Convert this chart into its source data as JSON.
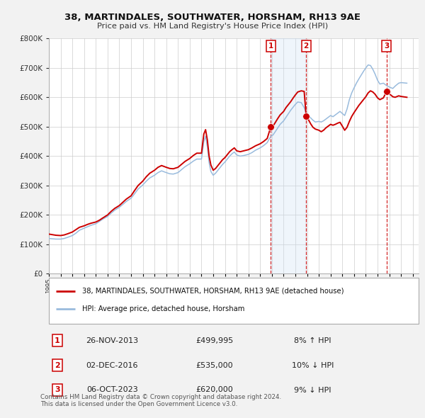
{
  "title": "38, MARTINDALES, SOUTHWATER, HORSHAM, RH13 9AE",
  "subtitle": "Price paid vs. HM Land Registry's House Price Index (HPI)",
  "ylim": [
    0,
    800000
  ],
  "yticks": [
    0,
    100000,
    200000,
    300000,
    400000,
    500000,
    600000,
    700000,
    800000
  ],
  "xlim_start": 1995.0,
  "xlim_end": 2026.5,
  "bg_color": "#f2f2f2",
  "plot_bg_color": "#ffffff",
  "grid_color": "#cccccc",
  "red_line_color": "#cc0000",
  "blue_line_color": "#99bbdd",
  "shade_color": "#cce0f5",
  "marker_color": "#cc0000",
  "sale_marker_size": 7,
  "purchases": [
    {
      "date_num": 2013.91,
      "price": 499995,
      "label": "1"
    },
    {
      "date_num": 2016.92,
      "price": 535000,
      "label": "2"
    },
    {
      "date_num": 2023.77,
      "price": 620000,
      "label": "3"
    }
  ],
  "vline_dates": [
    2013.91,
    2016.92,
    2023.77
  ],
  "shade_regions": [
    [
      2013.91,
      2016.92
    ]
  ],
  "legend_entries": [
    {
      "label": "38, MARTINDALES, SOUTHWATER, HORSHAM, RH13 9AE (detached house)",
      "color": "#cc0000",
      "lw": 2
    },
    {
      "label": "HPI: Average price, detached house, Horsham",
      "color": "#99bbdd",
      "lw": 2
    }
  ],
  "table_rows": [
    {
      "num": "1",
      "date": "26-NOV-2013",
      "price": "£499,995",
      "hpi": "8% ↑ HPI"
    },
    {
      "num": "2",
      "date": "02-DEC-2016",
      "price": "£535,000",
      "hpi": "10% ↓ HPI"
    },
    {
      "num": "3",
      "date": "06-OCT-2023",
      "price": "£620,000",
      "hpi": "9% ↓ HPI"
    }
  ],
  "footer": "Contains HM Land Registry data © Crown copyright and database right 2024.\nThis data is licensed under the Open Government Licence v3.0.",
  "red_hpi_data": [
    [
      1995.0,
      135000
    ],
    [
      1995.3,
      133000
    ],
    [
      1995.6,
      131000
    ],
    [
      1996.0,
      130000
    ],
    [
      1996.3,
      132000
    ],
    [
      1996.6,
      136000
    ],
    [
      1997.0,
      142000
    ],
    [
      1997.3,
      150000
    ],
    [
      1997.6,
      158000
    ],
    [
      1998.0,
      163000
    ],
    [
      1998.3,
      168000
    ],
    [
      1998.6,
      172000
    ],
    [
      1999.0,
      176000
    ],
    [
      1999.3,
      182000
    ],
    [
      1999.6,
      190000
    ],
    [
      2000.0,
      200000
    ],
    [
      2000.3,
      212000
    ],
    [
      2000.6,
      222000
    ],
    [
      2001.0,
      232000
    ],
    [
      2001.3,
      243000
    ],
    [
      2001.6,
      254000
    ],
    [
      2002.0,
      265000
    ],
    [
      2002.3,
      283000
    ],
    [
      2002.6,
      300000
    ],
    [
      2003.0,
      315000
    ],
    [
      2003.3,
      330000
    ],
    [
      2003.6,
      342000
    ],
    [
      2004.0,
      352000
    ],
    [
      2004.3,
      362000
    ],
    [
      2004.6,
      368000
    ],
    [
      2005.0,
      362000
    ],
    [
      2005.3,
      358000
    ],
    [
      2005.6,
      357000
    ],
    [
      2006.0,
      362000
    ],
    [
      2006.3,
      372000
    ],
    [
      2006.6,
      382000
    ],
    [
      2007.0,
      392000
    ],
    [
      2007.3,
      402000
    ],
    [
      2007.6,
      410000
    ],
    [
      2008.0,
      410000
    ],
    [
      2008.2,
      475000
    ],
    [
      2008.35,
      490000
    ],
    [
      2008.5,
      455000
    ],
    [
      2008.65,
      400000
    ],
    [
      2008.8,
      370000
    ],
    [
      2009.0,
      352000
    ],
    [
      2009.2,
      358000
    ],
    [
      2009.4,
      368000
    ],
    [
      2009.6,
      378000
    ],
    [
      2009.8,
      388000
    ],
    [
      2010.0,
      395000
    ],
    [
      2010.2,
      405000
    ],
    [
      2010.4,
      415000
    ],
    [
      2010.6,
      422000
    ],
    [
      2010.8,
      428000
    ],
    [
      2011.0,
      418000
    ],
    [
      2011.3,
      415000
    ],
    [
      2011.6,
      418000
    ],
    [
      2012.0,
      422000
    ],
    [
      2012.3,
      428000
    ],
    [
      2012.6,
      435000
    ],
    [
      2013.0,
      442000
    ],
    [
      2013.3,
      450000
    ],
    [
      2013.6,
      460000
    ],
    [
      2013.91,
      499995
    ],
    [
      2014.1,
      502000
    ],
    [
      2014.3,
      515000
    ],
    [
      2014.5,
      528000
    ],
    [
      2014.7,
      540000
    ],
    [
      2015.0,
      552000
    ],
    [
      2015.2,
      565000
    ],
    [
      2015.4,
      575000
    ],
    [
      2015.6,
      585000
    ],
    [
      2015.8,
      597000
    ],
    [
      2016.0,
      608000
    ],
    [
      2016.2,
      618000
    ],
    [
      2016.5,
      622000
    ],
    [
      2016.75,
      620000
    ],
    [
      2016.92,
      535000
    ],
    [
      2017.1,
      525000
    ],
    [
      2017.3,
      510000
    ],
    [
      2017.5,
      498000
    ],
    [
      2017.7,
      492000
    ],
    [
      2018.0,
      488000
    ],
    [
      2018.2,
      483000
    ],
    [
      2018.4,
      488000
    ],
    [
      2018.6,
      496000
    ],
    [
      2018.8,
      502000
    ],
    [
      2019.0,
      508000
    ],
    [
      2019.2,
      505000
    ],
    [
      2019.4,
      508000
    ],
    [
      2019.6,
      512000
    ],
    [
      2019.8,
      515000
    ],
    [
      2020.0,
      502000
    ],
    [
      2020.2,
      488000
    ],
    [
      2020.4,
      498000
    ],
    [
      2020.6,
      518000
    ],
    [
      2020.8,
      535000
    ],
    [
      2021.0,
      548000
    ],
    [
      2021.2,
      560000
    ],
    [
      2021.4,
      572000
    ],
    [
      2021.6,
      582000
    ],
    [
      2021.8,
      592000
    ],
    [
      2022.0,
      602000
    ],
    [
      2022.2,
      615000
    ],
    [
      2022.4,
      622000
    ],
    [
      2022.6,
      618000
    ],
    [
      2022.8,
      610000
    ],
    [
      2023.0,
      598000
    ],
    [
      2023.2,
      592000
    ],
    [
      2023.5,
      598000
    ],
    [
      2023.77,
      620000
    ],
    [
      2024.0,
      612000
    ],
    [
      2024.3,
      602000
    ],
    [
      2024.5,
      600000
    ],
    [
      2024.8,
      605000
    ],
    [
      2025.0,
      603000
    ],
    [
      2025.5,
      600000
    ]
  ],
  "blue_hpi_data": [
    [
      1995.0,
      120000
    ],
    [
      1995.3,
      119000
    ],
    [
      1995.6,
      118000
    ],
    [
      1996.0,
      118000
    ],
    [
      1996.3,
      120000
    ],
    [
      1996.6,
      124000
    ],
    [
      1997.0,
      130000
    ],
    [
      1997.3,
      138000
    ],
    [
      1997.6,
      148000
    ],
    [
      1998.0,
      155000
    ],
    [
      1998.3,
      160000
    ],
    [
      1998.6,
      165000
    ],
    [
      1999.0,
      170000
    ],
    [
      1999.3,
      178000
    ],
    [
      1999.6,
      186000
    ],
    [
      2000.0,
      195000
    ],
    [
      2000.3,
      206000
    ],
    [
      2000.6,
      216000
    ],
    [
      2001.0,
      226000
    ],
    [
      2001.3,
      236000
    ],
    [
      2001.6,
      246000
    ],
    [
      2002.0,
      257000
    ],
    [
      2002.3,
      272000
    ],
    [
      2002.6,
      288000
    ],
    [
      2003.0,
      302000
    ],
    [
      2003.3,
      315000
    ],
    [
      2003.6,
      326000
    ],
    [
      2004.0,
      335000
    ],
    [
      2004.3,
      344000
    ],
    [
      2004.6,
      350000
    ],
    [
      2005.0,
      344000
    ],
    [
      2005.3,
      340000
    ],
    [
      2005.6,
      339000
    ],
    [
      2006.0,
      344000
    ],
    [
      2006.3,
      354000
    ],
    [
      2006.6,
      364000
    ],
    [
      2007.0,
      374000
    ],
    [
      2007.3,
      383000
    ],
    [
      2007.6,
      390000
    ],
    [
      2008.0,
      390000
    ],
    [
      2008.2,
      450000
    ],
    [
      2008.35,
      468000
    ],
    [
      2008.5,
      432000
    ],
    [
      2008.65,
      378000
    ],
    [
      2008.8,
      348000
    ],
    [
      2009.0,
      335000
    ],
    [
      2009.2,
      342000
    ],
    [
      2009.4,
      352000
    ],
    [
      2009.6,
      362000
    ],
    [
      2009.8,
      372000
    ],
    [
      2010.0,
      380000
    ],
    [
      2010.2,
      390000
    ],
    [
      2010.4,
      400000
    ],
    [
      2010.6,
      408000
    ],
    [
      2010.8,
      414000
    ],
    [
      2011.0,
      404000
    ],
    [
      2011.3,
      400000
    ],
    [
      2011.6,
      402000
    ],
    [
      2012.0,
      406000
    ],
    [
      2012.3,
      412000
    ],
    [
      2012.6,
      420000
    ],
    [
      2013.0,
      428000
    ],
    [
      2013.3,
      436000
    ],
    [
      2013.6,
      446000
    ],
    [
      2013.91,
      468000
    ],
    [
      2014.1,
      472000
    ],
    [
      2014.3,
      484000
    ],
    [
      2014.5,
      496000
    ],
    [
      2014.7,
      508000
    ],
    [
      2015.0,
      520000
    ],
    [
      2015.2,
      532000
    ],
    [
      2015.4,
      544000
    ],
    [
      2015.6,
      556000
    ],
    [
      2015.8,
      566000
    ],
    [
      2016.0,
      576000
    ],
    [
      2016.2,
      584000
    ],
    [
      2016.5,
      582000
    ],
    [
      2016.75,
      565000
    ],
    [
      2016.92,
      548000
    ],
    [
      2017.1,
      540000
    ],
    [
      2017.3,
      530000
    ],
    [
      2017.5,
      522000
    ],
    [
      2017.7,
      516000
    ],
    [
      2018.0,
      518000
    ],
    [
      2018.2,
      516000
    ],
    [
      2018.4,
      520000
    ],
    [
      2018.6,
      526000
    ],
    [
      2018.8,
      532000
    ],
    [
      2019.0,
      538000
    ],
    [
      2019.2,
      534000
    ],
    [
      2019.4,
      540000
    ],
    [
      2019.6,
      546000
    ],
    [
      2019.8,
      552000
    ],
    [
      2020.0,
      545000
    ],
    [
      2020.2,
      538000
    ],
    [
      2020.4,
      560000
    ],
    [
      2020.6,
      592000
    ],
    [
      2020.8,
      615000
    ],
    [
      2021.0,
      632000
    ],
    [
      2021.2,
      648000
    ],
    [
      2021.4,
      662000
    ],
    [
      2021.6,
      675000
    ],
    [
      2021.8,
      688000
    ],
    [
      2022.0,
      700000
    ],
    [
      2022.2,
      710000
    ],
    [
      2022.4,
      708000
    ],
    [
      2022.6,
      695000
    ],
    [
      2022.8,
      678000
    ],
    [
      2023.0,
      658000
    ],
    [
      2023.2,
      645000
    ],
    [
      2023.5,
      648000
    ],
    [
      2023.77,
      640000
    ],
    [
      2024.0,
      635000
    ],
    [
      2024.3,
      630000
    ],
    [
      2024.5,
      638000
    ],
    [
      2024.8,
      648000
    ],
    [
      2025.0,
      650000
    ],
    [
      2025.5,
      648000
    ]
  ]
}
